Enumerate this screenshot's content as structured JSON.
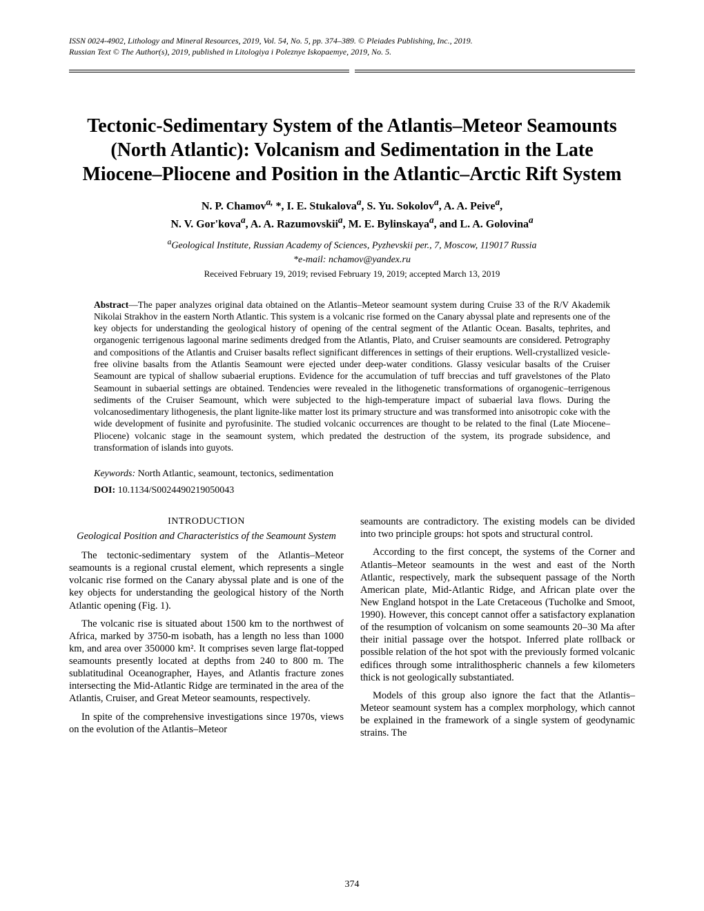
{
  "header": {
    "line1": "ISSN 0024-4902, Lithology and Mineral Resources, 2019, Vol. 54, No. 5, pp. 374–389. © Pleiades Publishing, Inc., 2019.",
    "line2": "Russian Text © The Author(s), 2019, published in Litologiya i Poleznye Iskopaemye, 2019, No. 5."
  },
  "title": "Tectonic-Sedimentary System of the Atlantis–Meteor Seamounts (North Atlantic): Volcanism and Sedimentation in the Late Miocene–Pliocene and Position in the Atlantic–Arctic Rift System",
  "authors_line1": "N. P. Chamov",
  "authors_sup1": "a,",
  "authors_star": " *, I. E. Stukalova",
  "authors_sup2": "a",
  "authors_cont1": ", S. Yu. Sokolov",
  "authors_sup3": "a",
  "authors_cont2": ", A. A. Peive",
  "authors_sup4": "a",
  "authors_comma": ",",
  "authors_line2a": "N. V. Gor'kova",
  "authors_sup5": "a",
  "authors_line2b": ", A. A. Razumovskii",
  "authors_sup6": "a",
  "authors_line2c": ", M. E. Bylinskaya",
  "authors_sup7": "a",
  "authors_line2d": ", and L. A. Golovina",
  "authors_sup8": "a",
  "affiliation": "Geological Institute, Russian Academy of Sciences, Pyzhevskii per., 7, Moscow, 119017 Russia",
  "affiliation_sup": "a",
  "email": "*e-mail: nchamov@yandex.ru",
  "dates": "Received February 19, 2019; revised February 19, 2019; accepted March 13, 2019",
  "abstract_label": "Abstract",
  "abstract_text": "—The paper analyzes original data obtained on the Atlantis–Meteor seamount system during Cruise 33 of the R/V Akademik Nikolai Strakhov in the eastern North Atlantic. This system is a volcanic rise formed on the Canary abyssal plate and represents one of the key objects for understanding the geological history of opening of the central segment of the Atlantic Ocean. Basalts, tephrites, and organogenic terrigenous lagoonal marine sediments dredged from the Atlantis, Plato, and Cruiser seamounts are considered. Petrography and compositions of the Atlantis and Cruiser basalts reflect significant differences in settings of their eruptions. Well-crystallized vesicle-free olivine basalts from the Atlantis Seamount were ejected under deep-water conditions. Glassy vesicular basalts of the Cruiser Seamount are typical of shallow subaerial eruptions. Evidence for the accumulation of tuff breccias and tuff gravelstones of the Plato Seamount in subaerial settings are obtained. Tendencies were revealed in the lithogenetic transformations of organogenic–terrigenous sediments of the Cruiser Seamount, which were subjected to the high-temperature impact of subaerial lava flows. During the volcanosedimentary lithogenesis, the plant lignite-like matter lost its primary structure and was transformed into anisotropic coke with the wide development of fusinite and pyrofusinite. The studied volcanic occurrences are thought to be related to the final (Late Miocene–Pliocene) volcanic stage in the seamount system, which predated the destruction of the system, its prograde subsidence, and transformation of islands into guyots.",
  "keywords_label": "Keywords:",
  "keywords_text": " North Atlantic, seamount, tectonics, sedimentation",
  "doi_label": "DOI:",
  "doi_text": " 10.1134/S0024490219050043",
  "section_heading": "INTRODUCTION",
  "section_subheading": "Geological Position and Characteristics of the Seamount System",
  "col_left": {
    "p1": "The tectonic-sedimentary system of the Atlantis–Meteor seamounts is a regional crustal element, which represents a single volcanic rise formed on the Canary abyssal plate and is one of the key objects for understanding the geological history of the North Atlantic opening (Fig. 1).",
    "p2": "The volcanic rise is situated about 1500 km to the northwest of Africa, marked by 3750-m isobath, has a length no less than 1000 km, and area over 350000 km². It comprises seven large flat-topped seamounts presently located at depths from 240 to 800 m. The sublatitudinal Oceanographer, Hayes, and Atlantis fracture zones intersecting the Mid-Atlantic Ridge are terminated in the area of the Atlantis, Cruiser, and Great Meteor seamounts, respectively.",
    "p3": "In spite of the comprehensive investigations since 1970s, views on the evolution of the Atlantis–Meteor"
  },
  "col_right": {
    "p1": "seamounts are contradictory. The existing models can be divided into two principle groups: hot spots and structural control.",
    "p2": "According to the first concept, the systems of the Corner and Atlantis–Meteor seamounts in the west and east of the North Atlantic, respectively, mark the subsequent passage of the North American plate, Mid-Atlantic Ridge, and African plate over the New England hotspot in the Late Cretaceous (Tucholke and Smoot, 1990). However, this concept cannot offer a satisfactory explanation of the resumption of volcanism on some seamounts 20–30 Ma after their initial passage over the hotspot. Inferred plate rollback or possible relation of the hot spot with the previously formed volcanic edifices through some intralithospheric channels a few kilometers thick is not geologically substantiated.",
    "p3": "Models of this group also ignore the fact that the Atlantis–Meteor seamount system has a complex morphology, which cannot be explained in the framework of a single system of geodynamic strains. The"
  },
  "page_number": "374"
}
